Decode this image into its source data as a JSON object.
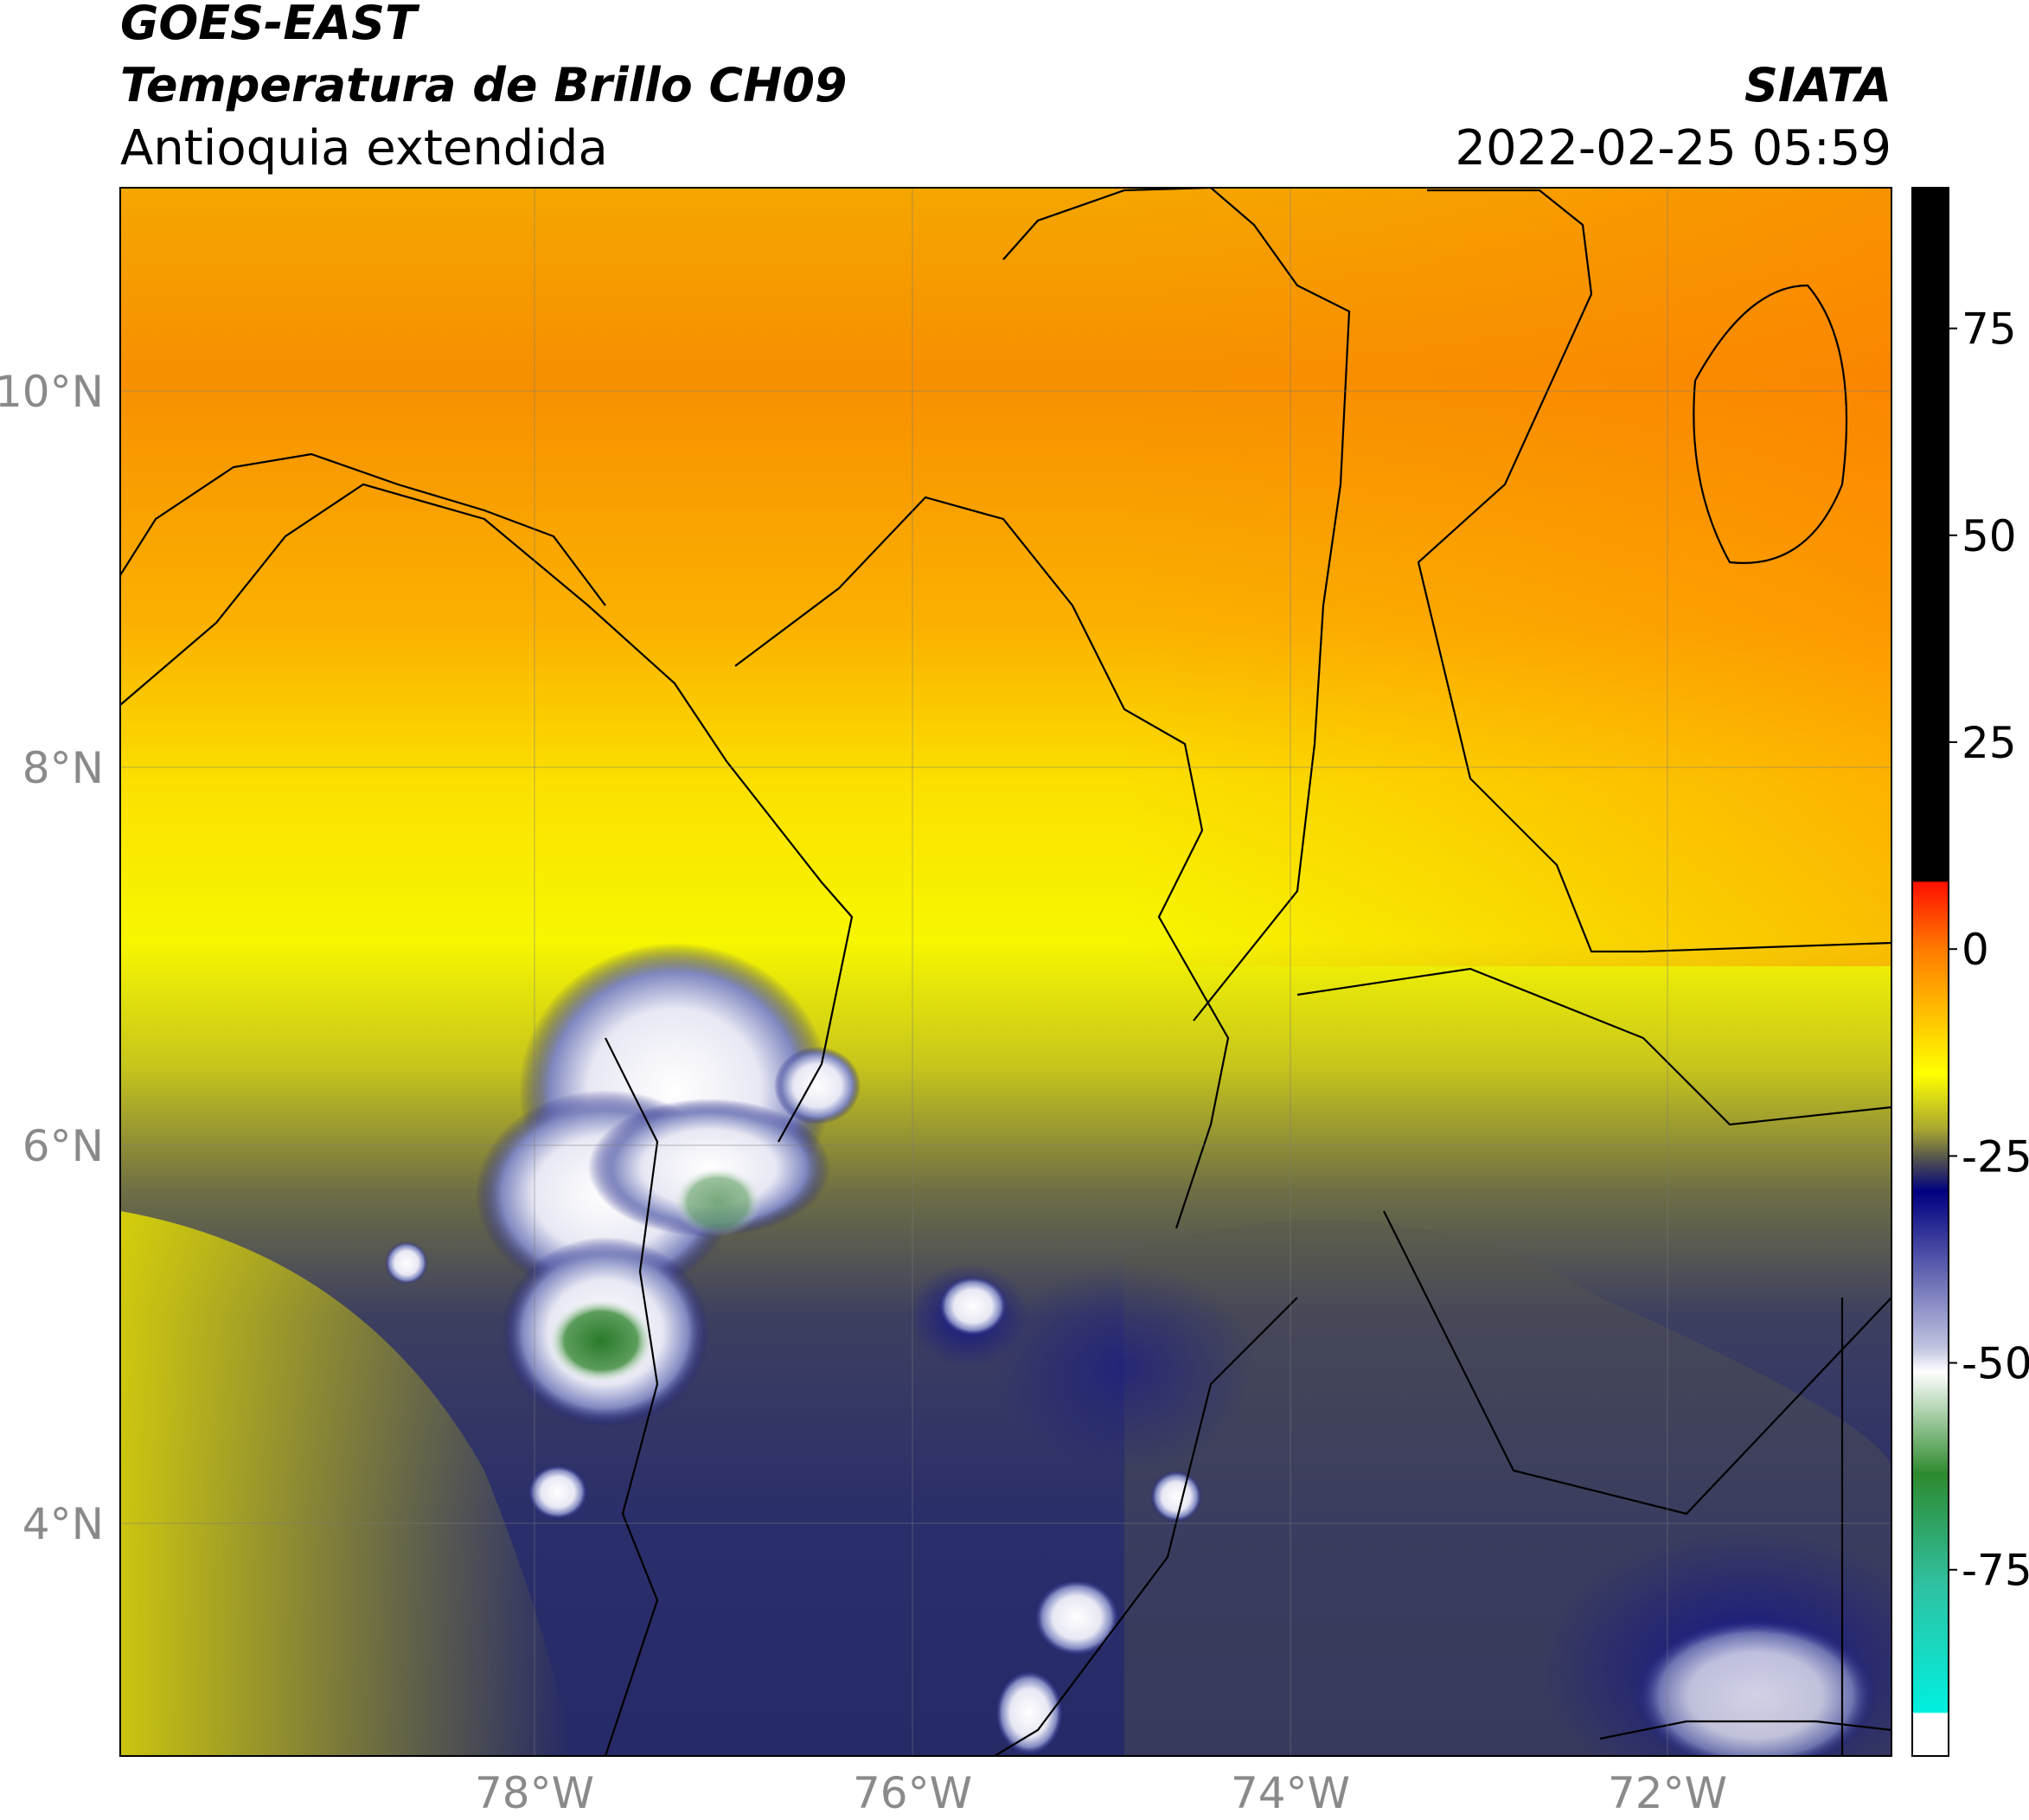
{
  "header": {
    "line1": "GOES-EAST",
    "line2": "Temperatura de Brillo CH09",
    "line3": "Antioquia extendida",
    "agency": "SIATA",
    "datetime": "2022-02-25 05:59"
  },
  "map": {
    "lat_labels": [
      "10°N",
      "8°N",
      "6°N",
      "4°N"
    ],
    "lon_labels": [
      "78°W",
      "76°W",
      "74°W",
      "72°W"
    ]
  },
  "colorbar": {
    "range": [
      -97.5,
      92
    ],
    "ticks": [
      75,
      50,
      25,
      0,
      -25,
      -50,
      -75
    ]
  }
}
